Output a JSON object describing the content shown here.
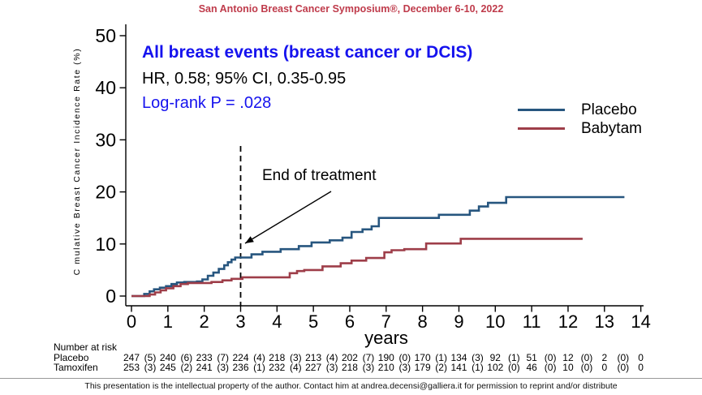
{
  "header": {
    "conference": "San Antonio Breast Cancer Symposium®, December 6-10, 2022",
    "color": "#bf3b4b"
  },
  "annotations": {
    "title": "All breast events (breast cancer or DCIS)",
    "subtitle": "HR, 0.58; 95% CI, 0.35-0.95",
    "logrank": "Log-rank P = .028",
    "end_of_treatment": "End of treatment",
    "title_color": "#1512ee",
    "logrank_color": "#1512ee"
  },
  "chart_data": {
    "type": "line",
    "title": "All breast events (breast cancer or DCIS)",
    "xlabel": "years",
    "ylabel": "C mulative Breast Cancer Incidence Rate (%)",
    "xlim": [
      0,
      14
    ],
    "ylim": [
      0,
      50
    ],
    "x_ticks": [
      0,
      1,
      2,
      3,
      4,
      5,
      6,
      7,
      8,
      9,
      10,
      11,
      12,
      13,
      14
    ],
    "y_ticks": [
      0,
      10,
      20,
      30,
      40,
      50
    ],
    "grid": false,
    "legend_position": "right",
    "reference_line": {
      "x": 3,
      "style": "dashed"
    },
    "series": [
      {
        "name": "Placebo",
        "color": "#27567f",
        "step": true,
        "points": [
          [
            0,
            0
          ],
          [
            0.35,
            0.4
          ],
          [
            0.5,
            0.9
          ],
          [
            0.62,
            1.3
          ],
          [
            0.78,
            1.6
          ],
          [
            0.95,
            1.9
          ],
          [
            1.1,
            2.3
          ],
          [
            1.25,
            2.6
          ],
          [
            1.45,
            2.7
          ],
          [
            1.8,
            2.8
          ],
          [
            1.95,
            3.2
          ],
          [
            2.1,
            3.9
          ],
          [
            2.25,
            4.5
          ],
          [
            2.4,
            5.2
          ],
          [
            2.55,
            5.9
          ],
          [
            2.65,
            6.5
          ],
          [
            2.75,
            7.0
          ],
          [
            2.85,
            7.4
          ],
          [
            3.3,
            8.0
          ],
          [
            3.6,
            8.5
          ],
          [
            4.1,
            9.0
          ],
          [
            4.6,
            9.6
          ],
          [
            4.95,
            10.3
          ],
          [
            5.45,
            10.7
          ],
          [
            5.8,
            11.2
          ],
          [
            6.05,
            12.3
          ],
          [
            6.35,
            12.8
          ],
          [
            6.6,
            13.4
          ],
          [
            6.8,
            15.0
          ],
          [
            8.45,
            15.6
          ],
          [
            9.3,
            16.4
          ],
          [
            9.55,
            17.2
          ],
          [
            9.8,
            17.9
          ],
          [
            10.3,
            19.0
          ],
          [
            13.55,
            19.0
          ]
        ]
      },
      {
        "name": "Babytam",
        "color": "#9e3e49",
        "step": true,
        "points": [
          [
            0,
            0
          ],
          [
            0.5,
            0.3
          ],
          [
            0.65,
            0.7
          ],
          [
            0.8,
            1.1
          ],
          [
            0.95,
            1.5
          ],
          [
            1.15,
            1.9
          ],
          [
            1.35,
            2.3
          ],
          [
            1.55,
            2.5
          ],
          [
            2.2,
            2.7
          ],
          [
            2.5,
            3.0
          ],
          [
            2.75,
            3.3
          ],
          [
            3.05,
            3.6
          ],
          [
            4.35,
            4.4
          ],
          [
            4.55,
            4.8
          ],
          [
            4.75,
            5.0
          ],
          [
            5.25,
            5.7
          ],
          [
            5.75,
            6.3
          ],
          [
            6.05,
            6.8
          ],
          [
            6.45,
            7.3
          ],
          [
            6.95,
            8.4
          ],
          [
            7.15,
            8.8
          ],
          [
            7.5,
            9.0
          ],
          [
            8.1,
            10.1
          ],
          [
            9.05,
            11.0
          ],
          [
            12.4,
            11.0
          ]
        ]
      }
    ]
  },
  "risk_table": {
    "header": "Number at risk",
    "rows": [
      {
        "label": "Placebo",
        "counts": [
          247,
          240,
          233,
          224,
          218,
          213,
          202,
          190,
          170,
          134,
          92,
          51,
          12,
          2,
          0
        ],
        "events": [
          5,
          6,
          7,
          4,
          3,
          4,
          7,
          0,
          1,
          3,
          1,
          0,
          0,
          0
        ]
      },
      {
        "label": "Tamoxifen",
        "counts": [
          253,
          245,
          241,
          236,
          232,
          227,
          218,
          210,
          179,
          141,
          102,
          46,
          10,
          0,
          0
        ],
        "events": [
          3,
          2,
          3,
          1,
          4,
          3,
          3,
          3,
          2,
          1,
          0,
          0,
          0,
          0
        ]
      }
    ]
  },
  "footer": {
    "text": "This presentation is the intellectual property of the author. Contact him at andrea.decensi@galliera.it for permission to reprint and/or distribute"
  }
}
